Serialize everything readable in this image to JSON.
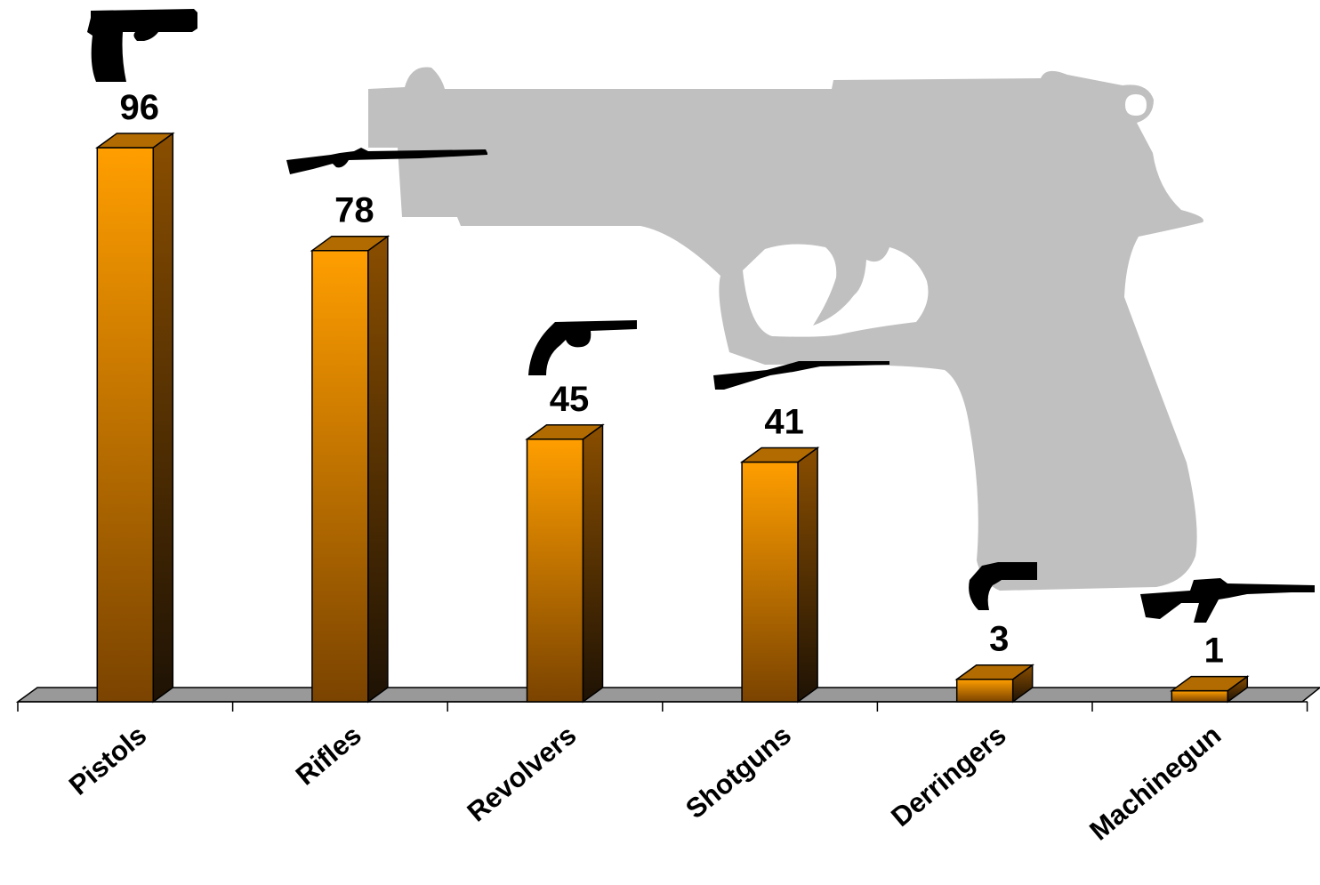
{
  "chart_data": {
    "type": "bar",
    "categories": [
      "Pistols",
      "Rifles",
      "Revolvers",
      "Shotguns",
      "Derringers",
      "Machinegun"
    ],
    "values": [
      96,
      78,
      45,
      41,
      3,
      1
    ],
    "data_labels": [
      "96",
      "78",
      "45",
      "41",
      "3",
      "1"
    ],
    "icons": [
      "pistol-icon",
      "rifle-icon",
      "revolver-icon",
      "shotgun-icon",
      "derringer-icon",
      "machinegun-icon"
    ],
    "background_icon": "handgun-silhouette-icon",
    "ylim": [
      0,
      100
    ],
    "grid": false,
    "legend": "none",
    "style": "3d",
    "colors": {
      "bar_top": "#ff9e00",
      "bar_bottom": "#7a4300",
      "bar_side_top": "#8a4e00",
      "bar_side_bottom": "#1e1204",
      "bar_cap": "#b26b00",
      "floor": "#999999",
      "silhouette": "#c0c0c0",
      "icon": "#000000"
    }
  }
}
